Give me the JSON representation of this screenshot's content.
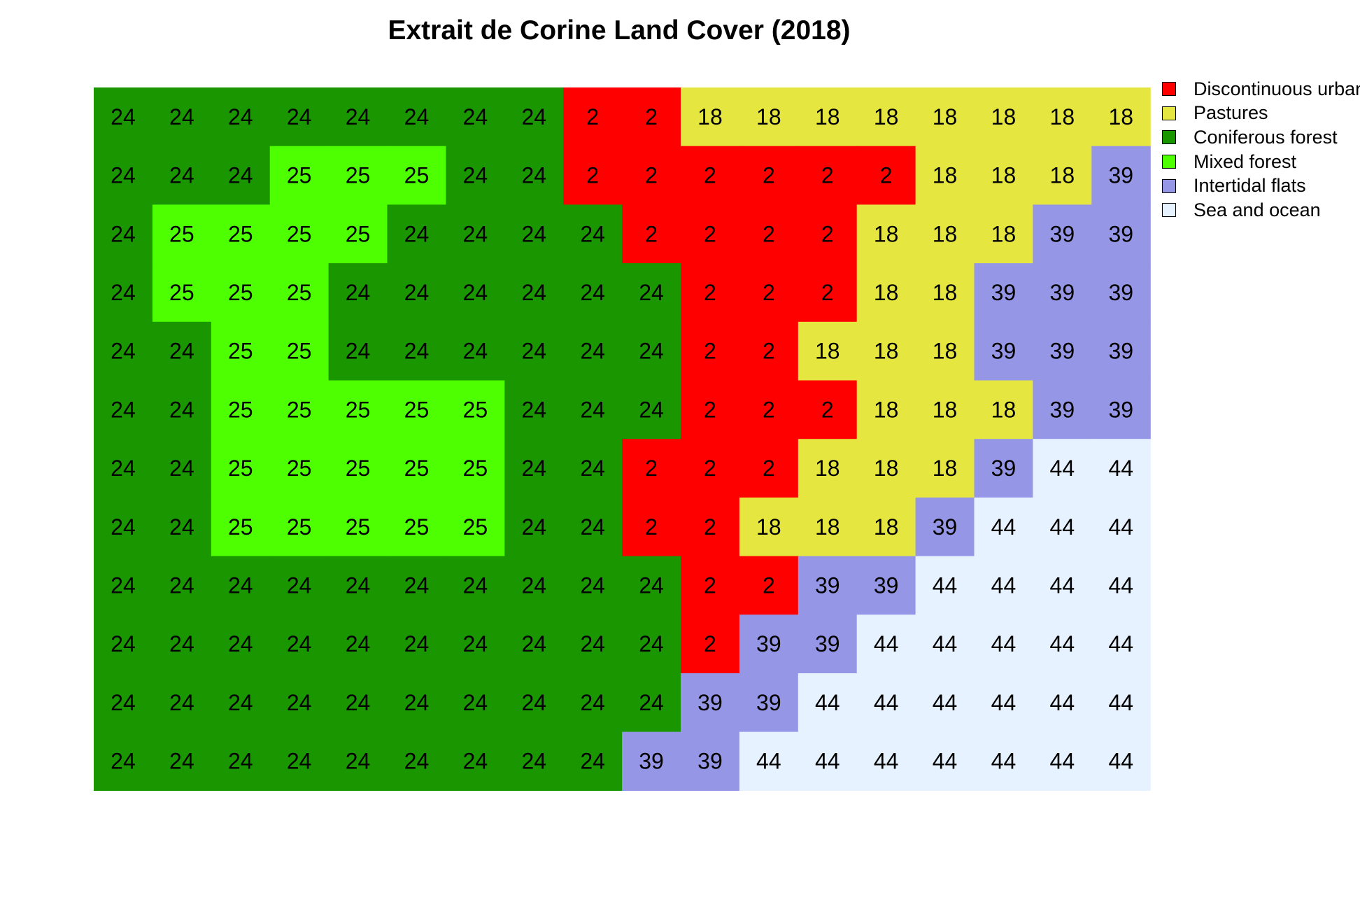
{
  "chart_data": {
    "type": "heatmap",
    "title": "Extrait de Corine Land Cover (2018)",
    "grid": false,
    "legend_position": "right",
    "classes": [
      {
        "code": 2,
        "label": "Discontinuous urban fabric",
        "color": "#FF0000"
      },
      {
        "code": 18,
        "label": "Pastures",
        "color": "#E6E640"
      },
      {
        "code": 24,
        "label": "Coniferous forest",
        "color": "#1A9600"
      },
      {
        "code": 25,
        "label": "Mixed forest",
        "color": "#4DFF00"
      },
      {
        "code": 39,
        "label": "Intertidal flats",
        "color": "#9696E6"
      },
      {
        "code": 44,
        "label": "Sea and ocean",
        "color": "#E6F2FF"
      }
    ],
    "values": [
      [
        24,
        24,
        24,
        24,
        24,
        24,
        24,
        24,
        2,
        2,
        18,
        18,
        18,
        18,
        18,
        18,
        18,
        18
      ],
      [
        24,
        24,
        24,
        25,
        25,
        25,
        24,
        24,
        2,
        2,
        2,
        2,
        2,
        2,
        18,
        18,
        18,
        39
      ],
      [
        24,
        25,
        25,
        25,
        25,
        24,
        24,
        24,
        24,
        2,
        2,
        2,
        2,
        18,
        18,
        18,
        39,
        39
      ],
      [
        24,
        25,
        25,
        25,
        24,
        24,
        24,
        24,
        24,
        24,
        2,
        2,
        2,
        18,
        18,
        39,
        39,
        39
      ],
      [
        24,
        24,
        25,
        25,
        24,
        24,
        24,
        24,
        24,
        24,
        2,
        2,
        18,
        18,
        18,
        39,
        39,
        39
      ],
      [
        24,
        24,
        25,
        25,
        25,
        25,
        25,
        24,
        24,
        24,
        2,
        2,
        2,
        18,
        18,
        18,
        39,
        39
      ],
      [
        24,
        24,
        25,
        25,
        25,
        25,
        25,
        24,
        24,
        2,
        2,
        2,
        18,
        18,
        18,
        39,
        44,
        44
      ],
      [
        24,
        24,
        25,
        25,
        25,
        25,
        25,
        24,
        24,
        2,
        2,
        18,
        18,
        18,
        39,
        44,
        44,
        44
      ],
      [
        24,
        24,
        24,
        24,
        24,
        24,
        24,
        24,
        24,
        24,
        2,
        2,
        39,
        39,
        44,
        44,
        44,
        44
      ],
      [
        24,
        24,
        24,
        24,
        24,
        24,
        24,
        24,
        24,
        24,
        2,
        39,
        39,
        44,
        44,
        44,
        44,
        44
      ],
      [
        24,
        24,
        24,
        24,
        24,
        24,
        24,
        24,
        24,
        24,
        39,
        39,
        44,
        44,
        44,
        44,
        44,
        44
      ],
      [
        24,
        24,
        24,
        24,
        24,
        24,
        24,
        24,
        24,
        39,
        39,
        44,
        44,
        44,
        44,
        44,
        44,
        44
      ]
    ]
  }
}
